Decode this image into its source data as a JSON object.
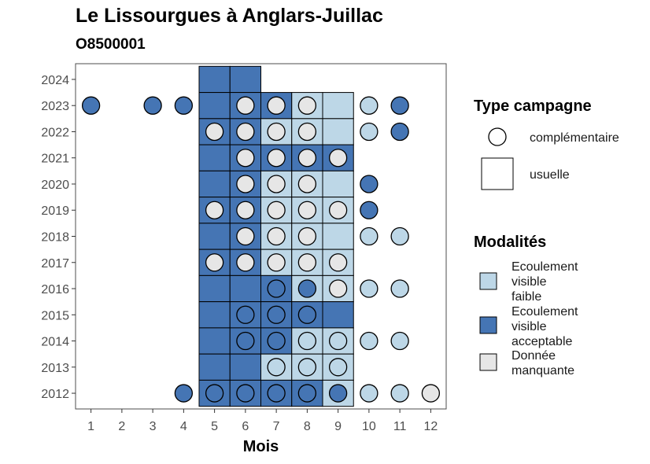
{
  "title": "Le Lissourgues à Anglars-Juillac",
  "subtitle": "O8500001",
  "colors": {
    "faible": "#bdd7e7",
    "acceptable": "#4575b4",
    "manquante": "#e6e6e6",
    "border": "#000000",
    "panel_border": "#4d4d4d"
  },
  "chart_data": {
    "type": "heatmap",
    "xlabel": "Mois",
    "ylabel": "",
    "x_ticks": [
      1,
      2,
      3,
      4,
      5,
      6,
      7,
      8,
      9,
      10,
      11,
      12
    ],
    "y_ticks": [
      2012,
      2013,
      2014,
      2015,
      2016,
      2017,
      2018,
      2019,
      2020,
      2021,
      2022,
      2023,
      2024
    ],
    "xlim": [
      0.5,
      12.5
    ],
    "ylim": [
      2011.4,
      2024.6
    ],
    "legend_shape": {
      "title": "Type campagne",
      "items": [
        {
          "key": "complementaire",
          "shape": "circle",
          "label": "complémentaire"
        },
        {
          "key": "usuelle",
          "shape": "square",
          "label": "usuelle"
        }
      ]
    },
    "legend_fill": {
      "title": "Modalités",
      "items": [
        {
          "key": "faible",
          "lines": [
            "Ecoulement",
            "visible",
            "faible"
          ]
        },
        {
          "key": "acceptable",
          "lines": [
            "Ecoulement",
            "visible",
            "acceptable"
          ]
        },
        {
          "key": "manquante",
          "lines": [
            "Donnée",
            "manquante"
          ]
        }
      ]
    },
    "usuelle": [
      {
        "year": 2024,
        "month": 5,
        "value": "acceptable"
      },
      {
        "year": 2024,
        "month": 6,
        "value": "acceptable"
      },
      {
        "year": 2023,
        "month": 5,
        "value": "acceptable"
      },
      {
        "year": 2023,
        "month": 6,
        "value": "acceptable"
      },
      {
        "year": 2023,
        "month": 7,
        "value": "acceptable"
      },
      {
        "year": 2023,
        "month": 8,
        "value": "faible"
      },
      {
        "year": 2023,
        "month": 9,
        "value": "faible"
      },
      {
        "year": 2022,
        "month": 5,
        "value": "acceptable"
      },
      {
        "year": 2022,
        "month": 6,
        "value": "acceptable"
      },
      {
        "year": 2022,
        "month": 7,
        "value": "faible"
      },
      {
        "year": 2022,
        "month": 8,
        "value": "faible"
      },
      {
        "year": 2022,
        "month": 9,
        "value": "faible"
      },
      {
        "year": 2021,
        "month": 5,
        "value": "acceptable"
      },
      {
        "year": 2021,
        "month": 6,
        "value": "acceptable"
      },
      {
        "year": 2021,
        "month": 7,
        "value": "acceptable"
      },
      {
        "year": 2021,
        "month": 8,
        "value": "acceptable"
      },
      {
        "year": 2021,
        "month": 9,
        "value": "acceptable"
      },
      {
        "year": 2020,
        "month": 5,
        "value": "acceptable"
      },
      {
        "year": 2020,
        "month": 6,
        "value": "acceptable"
      },
      {
        "year": 2020,
        "month": 7,
        "value": "faible"
      },
      {
        "year": 2020,
        "month": 8,
        "value": "faible"
      },
      {
        "year": 2020,
        "month": 9,
        "value": "faible"
      },
      {
        "year": 2019,
        "month": 5,
        "value": "acceptable"
      },
      {
        "year": 2019,
        "month": 6,
        "value": "acceptable"
      },
      {
        "year": 2019,
        "month": 7,
        "value": "faible"
      },
      {
        "year": 2019,
        "month": 8,
        "value": "faible"
      },
      {
        "year": 2019,
        "month": 9,
        "value": "faible"
      },
      {
        "year": 2018,
        "month": 5,
        "value": "acceptable"
      },
      {
        "year": 2018,
        "month": 6,
        "value": "acceptable"
      },
      {
        "year": 2018,
        "month": 7,
        "value": "faible"
      },
      {
        "year": 2018,
        "month": 8,
        "value": "faible"
      },
      {
        "year": 2018,
        "month": 9,
        "value": "faible"
      },
      {
        "year": 2017,
        "month": 5,
        "value": "acceptable"
      },
      {
        "year": 2017,
        "month": 6,
        "value": "acceptable"
      },
      {
        "year": 2017,
        "month": 7,
        "value": "faible"
      },
      {
        "year": 2017,
        "month": 8,
        "value": "faible"
      },
      {
        "year": 2017,
        "month": 9,
        "value": "faible"
      },
      {
        "year": 2016,
        "month": 5,
        "value": "acceptable"
      },
      {
        "year": 2016,
        "month": 6,
        "value": "acceptable"
      },
      {
        "year": 2016,
        "month": 7,
        "value": "acceptable"
      },
      {
        "year": 2016,
        "month": 8,
        "value": "faible"
      },
      {
        "year": 2016,
        "month": 9,
        "value": "faible"
      },
      {
        "year": 2015,
        "month": 5,
        "value": "acceptable"
      },
      {
        "year": 2015,
        "month": 6,
        "value": "acceptable"
      },
      {
        "year": 2015,
        "month": 7,
        "value": "acceptable"
      },
      {
        "year": 2015,
        "month": 8,
        "value": "acceptable"
      },
      {
        "year": 2015,
        "month": 9,
        "value": "acceptable"
      },
      {
        "year": 2014,
        "month": 5,
        "value": "acceptable"
      },
      {
        "year": 2014,
        "month": 6,
        "value": "acceptable"
      },
      {
        "year": 2014,
        "month": 7,
        "value": "acceptable"
      },
      {
        "year": 2014,
        "month": 8,
        "value": "faible"
      },
      {
        "year": 2014,
        "month": 9,
        "value": "faible"
      },
      {
        "year": 2013,
        "month": 5,
        "value": "acceptable"
      },
      {
        "year": 2013,
        "month": 6,
        "value": "acceptable"
      },
      {
        "year": 2013,
        "month": 7,
        "value": "faible"
      },
      {
        "year": 2013,
        "month": 8,
        "value": "faible"
      },
      {
        "year": 2013,
        "month": 9,
        "value": "faible"
      },
      {
        "year": 2012,
        "month": 5,
        "value": "acceptable"
      },
      {
        "year": 2012,
        "month": 6,
        "value": "acceptable"
      },
      {
        "year": 2012,
        "month": 7,
        "value": "acceptable"
      },
      {
        "year": 2012,
        "month": 8,
        "value": "acceptable"
      },
      {
        "year": 2012,
        "month": 9,
        "value": "faible"
      }
    ],
    "complementaire": [
      {
        "year": 2023,
        "month": 1,
        "value": "acceptable"
      },
      {
        "year": 2023,
        "month": 3,
        "value": "acceptable"
      },
      {
        "year": 2023,
        "month": 4,
        "value": "acceptable"
      },
      {
        "year": 2023,
        "month": 6,
        "value": "manquante"
      },
      {
        "year": 2023,
        "month": 7,
        "value": "manquante"
      },
      {
        "year": 2023,
        "month": 8,
        "value": "manquante"
      },
      {
        "year": 2023,
        "month": 10,
        "value": "faible"
      },
      {
        "year": 2023,
        "month": 11,
        "value": "acceptable"
      },
      {
        "year": 2022,
        "month": 5,
        "value": "manquante"
      },
      {
        "year": 2022,
        "month": 6,
        "value": "manquante"
      },
      {
        "year": 2022,
        "month": 7,
        "value": "manquante"
      },
      {
        "year": 2022,
        "month": 8,
        "value": "manquante"
      },
      {
        "year": 2022,
        "month": 10,
        "value": "faible"
      },
      {
        "year": 2022,
        "month": 11,
        "value": "acceptable"
      },
      {
        "year": 2021,
        "month": 6,
        "value": "manquante"
      },
      {
        "year": 2021,
        "month": 7,
        "value": "manquante"
      },
      {
        "year": 2021,
        "month": 8,
        "value": "manquante"
      },
      {
        "year": 2021,
        "month": 9,
        "value": "manquante"
      },
      {
        "year": 2020,
        "month": 6,
        "value": "manquante"
      },
      {
        "year": 2020,
        "month": 7,
        "value": "manquante"
      },
      {
        "year": 2020,
        "month": 8,
        "value": "manquante"
      },
      {
        "year": 2020,
        "month": 10,
        "value": "acceptable"
      },
      {
        "year": 2019,
        "month": 5,
        "value": "manquante"
      },
      {
        "year": 2019,
        "month": 6,
        "value": "manquante"
      },
      {
        "year": 2019,
        "month": 7,
        "value": "manquante"
      },
      {
        "year": 2019,
        "month": 8,
        "value": "manquante"
      },
      {
        "year": 2019,
        "month": 9,
        "value": "manquante"
      },
      {
        "year": 2019,
        "month": 10,
        "value": "acceptable"
      },
      {
        "year": 2018,
        "month": 6,
        "value": "manquante"
      },
      {
        "year": 2018,
        "month": 7,
        "value": "manquante"
      },
      {
        "year": 2018,
        "month": 8,
        "value": "manquante"
      },
      {
        "year": 2018,
        "month": 10,
        "value": "faible"
      },
      {
        "year": 2018,
        "month": 11,
        "value": "faible"
      },
      {
        "year": 2017,
        "month": 5,
        "value": "manquante"
      },
      {
        "year": 2017,
        "month": 6,
        "value": "manquante"
      },
      {
        "year": 2017,
        "month": 7,
        "value": "manquante"
      },
      {
        "year": 2017,
        "month": 8,
        "value": "manquante"
      },
      {
        "year": 2017,
        "month": 9,
        "value": "manquante"
      },
      {
        "year": 2016,
        "month": 7,
        "value": "acceptable"
      },
      {
        "year": 2016,
        "month": 8,
        "value": "acceptable"
      },
      {
        "year": 2016,
        "month": 9,
        "value": "manquante"
      },
      {
        "year": 2016,
        "month": 10,
        "value": "faible"
      },
      {
        "year": 2016,
        "month": 11,
        "value": "faible"
      },
      {
        "year": 2015,
        "month": 6,
        "value": "acceptable"
      },
      {
        "year": 2015,
        "month": 7,
        "value": "acceptable"
      },
      {
        "year": 2015,
        "month": 8,
        "value": "acceptable"
      },
      {
        "year": 2014,
        "month": 6,
        "value": "acceptable"
      },
      {
        "year": 2014,
        "month": 7,
        "value": "acceptable"
      },
      {
        "year": 2014,
        "month": 8,
        "value": "faible"
      },
      {
        "year": 2014,
        "month": 9,
        "value": "faible"
      },
      {
        "year": 2014,
        "month": 10,
        "value": "faible"
      },
      {
        "year": 2014,
        "month": 11,
        "value": "faible"
      },
      {
        "year": 2013,
        "month": 7,
        "value": "faible"
      },
      {
        "year": 2013,
        "month": 8,
        "value": "faible"
      },
      {
        "year": 2013,
        "month": 9,
        "value": "faible"
      },
      {
        "year": 2012,
        "month": 4,
        "value": "acceptable"
      },
      {
        "year": 2012,
        "month": 5,
        "value": "acceptable"
      },
      {
        "year": 2012,
        "month": 6,
        "value": "acceptable"
      },
      {
        "year": 2012,
        "month": 7,
        "value": "acceptable"
      },
      {
        "year": 2012,
        "month": 8,
        "value": "acceptable"
      },
      {
        "year": 2012,
        "month": 9,
        "value": "acceptable"
      },
      {
        "year": 2012,
        "month": 10,
        "value": "faible"
      },
      {
        "year": 2012,
        "month": 11,
        "value": "faible"
      },
      {
        "year": 2012,
        "month": 12,
        "value": "manquante"
      }
    ]
  }
}
